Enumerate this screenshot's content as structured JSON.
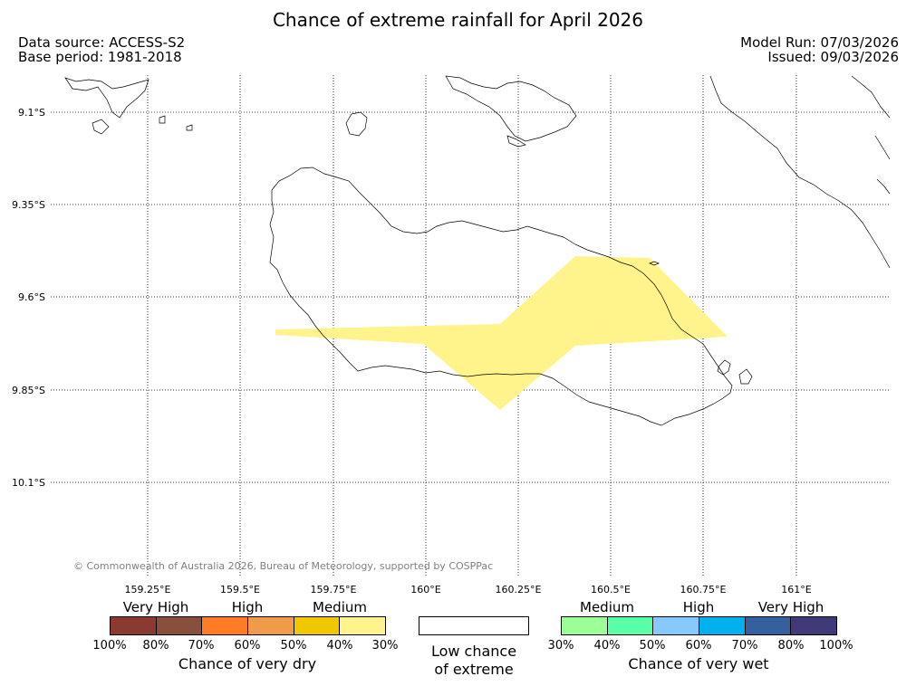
{
  "title": "Chance of extreme rainfall for April 2026",
  "header": {
    "data_source": "Data source: ACCESS-S2",
    "base_period": "Base period: 1981-2018",
    "model_run": "Model Run: 07/03/2026",
    "issued": "Issued: 09/03/2026"
  },
  "map": {
    "lat_labels": [
      "9.1°S",
      "9.35°S",
      "9.6°S",
      "9.85°S",
      "10.1°S"
    ],
    "lon_labels": [
      "159.25°E",
      "159.5°E",
      "159.75°E",
      "160°E",
      "160.25°E",
      "160.5°E",
      "160.75°E",
      "161°E"
    ],
    "overlay_category": "Medium chance of very dry (30%-40%)",
    "overlay_color": "#fff48c",
    "copyright": "© Commonwealth of Australia 2026, Bureau of Meteorology, supported by COSPPac"
  },
  "legend_dry": {
    "categories": [
      "Very High",
      "High",
      "Medium"
    ],
    "ticks": [
      "100%",
      "80%",
      "70%",
      "60%",
      "50%",
      "40%",
      "30%"
    ],
    "colors": [
      "#8b3a32",
      "#8a4e3c",
      "#ff7b24",
      "#ef9b49",
      "#f0c800",
      "#fff48c"
    ],
    "title": "Chance of very dry"
  },
  "legend_low": {
    "line1": "Low chance",
    "line2": "of extreme"
  },
  "legend_wet": {
    "categories": [
      "Medium",
      "High",
      "Very High"
    ],
    "ticks": [
      "30%",
      "40%",
      "50%",
      "60%",
      "70%",
      "80%",
      "100%"
    ],
    "colors": [
      "#9cff96",
      "#59ffa6",
      "#86c9ff",
      "#00b1ed",
      "#365f9e",
      "#413a78"
    ],
    "title": "Chance of very wet"
  }
}
